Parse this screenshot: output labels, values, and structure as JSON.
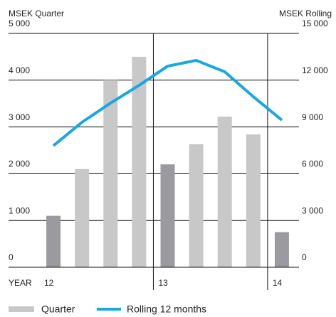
{
  "chart_data": {
    "type": "bar-line",
    "y_label": "MSEK Quarter",
    "y2_label": "MSEK Rolling",
    "x_label": "YEAR",
    "categories": [
      "12",
      null,
      null,
      null,
      "13",
      null,
      null,
      null,
      "14"
    ],
    "separators": [
      4,
      8
    ],
    "series": [
      {
        "name": "Quarter",
        "type": "bar",
        "color": "#c8c8c8",
        "colors": [
          "#9b9b9f",
          "#c8c8c8",
          "#c8c8c8",
          "#c8c8c8",
          "#9b9b9f",
          "#c8c8c8",
          "#c8c8c8",
          "#c8c8c8",
          "#9b9b9f"
        ],
        "values": [
          1100,
          2100,
          4000,
          4500,
          2200,
          2630,
          3220,
          2840,
          750
        ]
      },
      {
        "name": "Rolling 12 months",
        "type": "line",
        "axis": "y2",
        "color": "#1aa7e0",
        "values": [
          7800,
          9300,
          10530,
          11670,
          12900,
          13270,
          12540,
          10940,
          9440
        ]
      }
    ],
    "ylim": [
      0,
      5000
    ],
    "yticks": [
      0,
      {
        "value": 1000,
        "label": "1 000"
      },
      {
        "value": 2000,
        "label": "2 000"
      },
      {
        "value": 3000,
        "label": "3 000"
      },
      {
        "value": 4000,
        "label": "4 000"
      },
      {
        "value": 5000,
        "label": "5 000"
      }
    ],
    "y2lim": [
      0,
      15000
    ],
    "y2ticks": [
      0,
      {
        "value": 3000,
        "label": "3 000"
      },
      {
        "value": 6000,
        "label": "6 000"
      },
      {
        "value": 9000,
        "label": "9 000"
      },
      {
        "value": 12000,
        "label": "12 000"
      },
      {
        "value": 15000,
        "label": "15 000"
      }
    ],
    "grid": true
  }
}
